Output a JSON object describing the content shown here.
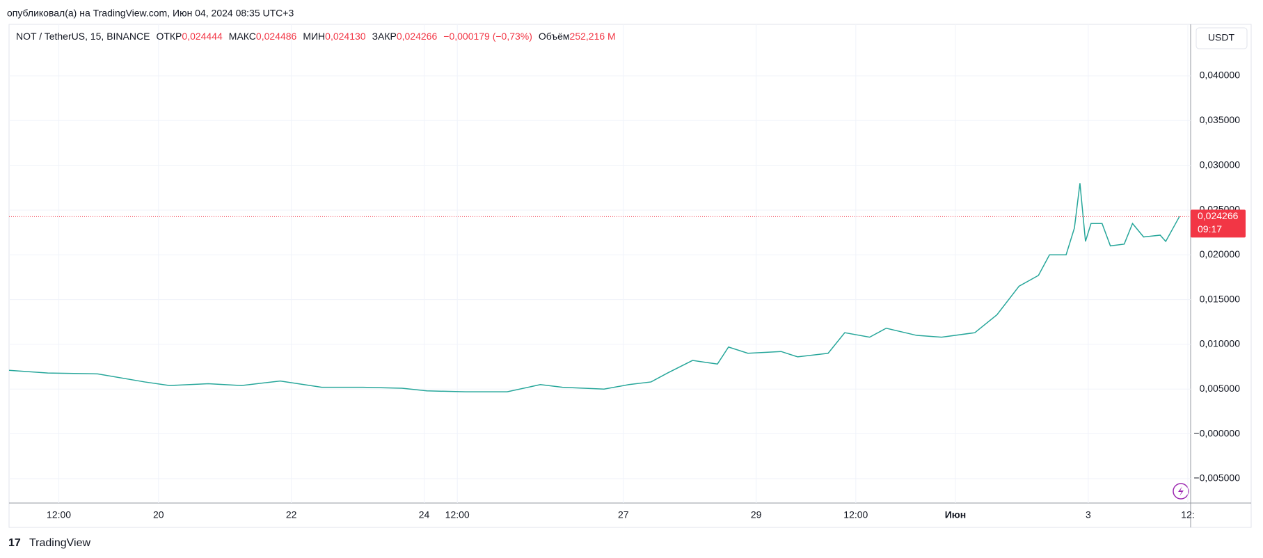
{
  "header": "опубликовал(а) на TradingView.com, Июн 04, 2024 08:35 UTC+3",
  "legend": {
    "symbol": "NOT / TetherUS, 15, BINANCE",
    "open_label": "ОТКР",
    "open": "0,024444",
    "high_label": "МАКС",
    "high": "0,024486",
    "low_label": "МИН",
    "low": "0,024130",
    "close_label": "ЗАКР",
    "close": "0,024266",
    "change": "−0,000179 (−0,73%)",
    "volume_label": "Объём",
    "volume": "252,216 M"
  },
  "currency": "USDT",
  "footer": "TradingView",
  "chart_data": {
    "type": "line",
    "color": "#26a69a",
    "grid": true,
    "x": [
      -6,
      8,
      26,
      43,
      52,
      66,
      78,
      92,
      107,
      122,
      136,
      145,
      159,
      174,
      186,
      194,
      209,
      218,
      226,
      232,
      241,
      250,
      254,
      261,
      273,
      279,
      290,
      296,
      305,
      311,
      322,
      331,
      343,
      351,
      359,
      366,
      370,
      376,
      379,
      381,
      383,
      385,
      389,
      392,
      397,
      400,
      404,
      410,
      412,
      417
    ],
    "values": [
      0.0071,
      0.0068,
      0.0067,
      0.0058,
      0.0054,
      0.0056,
      0.0054,
      0.0059,
      0.0052,
      0.0052,
      0.0051,
      0.0048,
      0.0047,
      0.0047,
      0.0055,
      0.0052,
      0.005,
      0.0055,
      0.0058,
      0.0068,
      0.0082,
      0.0078,
      0.0097,
      0.009,
      0.0092,
      0.0086,
      0.009,
      0.0113,
      0.0108,
      0.0118,
      0.011,
      0.0108,
      0.0113,
      0.0133,
      0.0165,
      0.0177,
      0.02,
      0.02,
      0.023,
      0.028,
      0.0215,
      0.0235,
      0.0235,
      0.021,
      0.0212,
      0.0235,
      0.022,
      0.0222,
      0.0215,
      0.0243
    ],
    "xlim": [
      -6,
      421
    ],
    "xticks": [
      {
        "value": 12,
        "label": "12:00"
      },
      {
        "value": 48,
        "label": "20"
      },
      {
        "value": 96,
        "label": "22"
      },
      {
        "value": 144,
        "label": "24"
      },
      {
        "value": 156,
        "label": "12:00"
      },
      {
        "value": 216,
        "label": "27"
      },
      {
        "value": 264,
        "label": "29"
      },
      {
        "value": 300,
        "label": "12:00"
      },
      {
        "value": 336,
        "label": "Июн"
      },
      {
        "value": 384,
        "label": "3"
      },
      {
        "value": 420,
        "label": "12:"
      }
    ],
    "ylim": [
      -0.00773,
      0.04575
    ],
    "yticks": [
      {
        "value": -0.005,
        "label": "−0,005000"
      },
      {
        "value": 0,
        "label": "−0,000000"
      },
      {
        "value": 0.005,
        "label": "0,005000"
      },
      {
        "value": 0.01,
        "label": "0,010000"
      },
      {
        "value": 0.015,
        "label": "0,015000"
      },
      {
        "value": 0.02,
        "label": "0,020000"
      },
      {
        "value": 0.025,
        "label": "0,025000"
      },
      {
        "value": 0.03,
        "label": "0,030000"
      },
      {
        "value": 0.035,
        "label": "0,035000"
      },
      {
        "value": 0.04,
        "label": "0,040000"
      }
    ],
    "last_price": {
      "value": 0.024266,
      "label": "0,024266",
      "color": "#f23645"
    },
    "countdown": "09:17"
  }
}
